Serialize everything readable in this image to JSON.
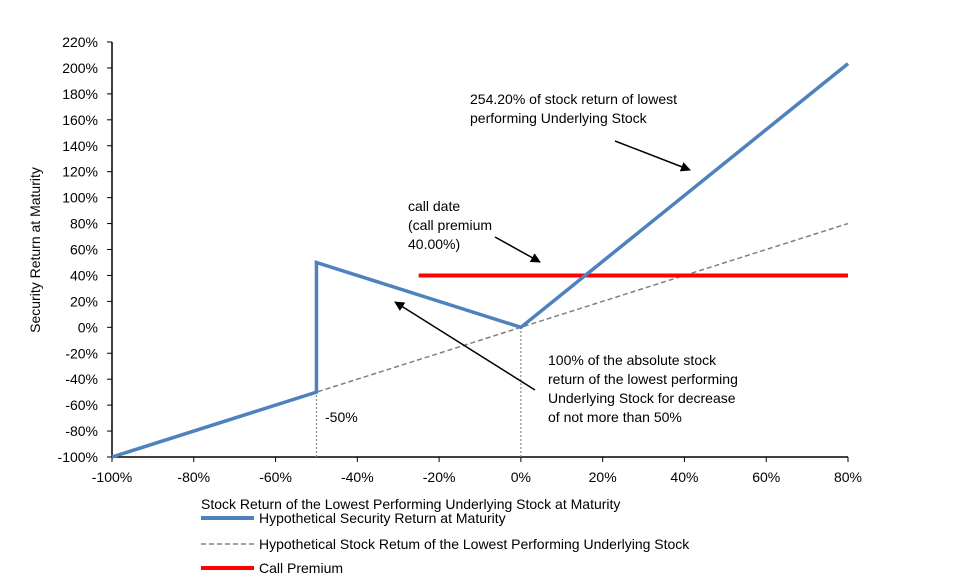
{
  "chart_data": {
    "type": "line",
    "xlabel": "Stock Return of the Lowest  Performing Underlying Stock at Maturity",
    "ylabel": "Security Return at Maturity",
    "xlim": [
      -100,
      80
    ],
    "ylim": [
      -100,
      220
    ],
    "xticks": [
      -100,
      -80,
      -60,
      -40,
      -20,
      0,
      20,
      40,
      60,
      80
    ],
    "xtick_labels": [
      "-100%",
      "-80%",
      "-60%",
      "-40%",
      "-20%",
      "0%",
      "20%",
      "40%",
      "60%",
      "80%"
    ],
    "yticks": [
      -100,
      -80,
      -60,
      -40,
      -20,
      0,
      20,
      40,
      60,
      80,
      100,
      120,
      140,
      160,
      180,
      200,
      220
    ],
    "ytick_labels": [
      "-100%",
      "-80%",
      "-60%",
      "-40%",
      "-20%",
      "0%",
      "20%",
      "40%",
      "60%",
      "80%",
      "100%",
      "120%",
      "140%",
      "160%",
      "180%",
      "200%",
      "220%"
    ],
    "grid": false,
    "legend_position": "bottom",
    "series": [
      {
        "name": "Hypothetical Security Return at Maturity",
        "color": "#4f81bd",
        "style": "solid",
        "points": [
          [
            -100,
            -100
          ],
          [
            -50,
            -50
          ],
          [
            -50,
            50
          ],
          [
            0,
            0
          ],
          [
            80,
            203.36
          ]
        ]
      },
      {
        "name": "Hypothetical Stock Retum of the Lowest Performing Underlying Stock",
        "color": "#808080",
        "style": "dashed",
        "points": [
          [
            -100,
            -100
          ],
          [
            80,
            80
          ]
        ]
      },
      {
        "name": "Call Premium",
        "color": "#ff0000",
        "style": "solid",
        "points": [
          [
            -25,
            40
          ],
          [
            80,
            40
          ]
        ]
      }
    ],
    "reference_lines": [
      {
        "x": -50,
        "from": -100,
        "to": -50
      },
      {
        "x": 0,
        "from": -100,
        "to": 0
      }
    ],
    "annotations": {
      "minus50": "-50%",
      "upside": [
        "254.20% of stock return of lowest",
        "performing Underlying Stock"
      ],
      "call": [
        "call date",
        "(call premium",
        "40.00%)"
      ],
      "downside": [
        "100% of the absolute stock",
        "return of the lowest performing",
        "Underlying Stock for decrease",
        "of not more than 50%"
      ]
    }
  }
}
